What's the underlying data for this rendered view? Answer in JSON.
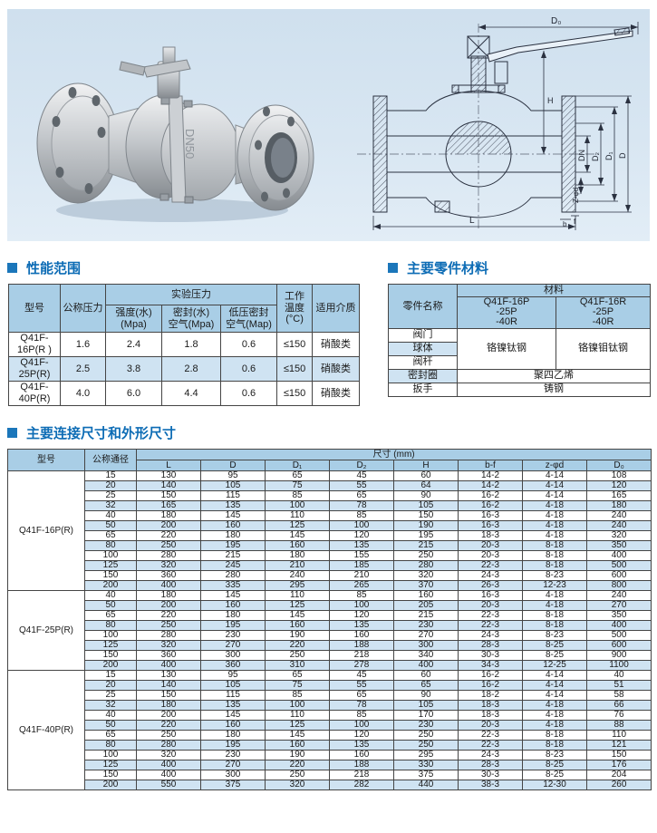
{
  "page": {
    "accent_blue": "#0d6cb5",
    "panel_bg": "#d8e6f2",
    "table_header_bg": "#a9cee6",
    "table_alt_row_bg": "#cfe3f2"
  },
  "hero": {
    "photo": {
      "cast_marking": "DN50"
    },
    "drawing": {
      "labels": {
        "d0": "D₀",
        "h": "H",
        "dn": "DN",
        "d2": "D₂",
        "d1": "D₁",
        "d": "D",
        "z_phi_d": "Z-φd",
        "b": "b",
        "f": "f",
        "l": "L"
      }
    }
  },
  "sections": {
    "performance": {
      "title": "性能范围"
    },
    "materials": {
      "title": "主要零件材料"
    },
    "dimensions": {
      "title": "主要连接尺寸和外形尺寸"
    }
  },
  "perf_table": {
    "head": [
      [
        {
          "t": "型号",
          "rs": 2
        },
        {
          "t": "公称压力",
          "rs": 2
        },
        {
          "t": "实验压力",
          "cs": 3
        },
        {
          "t": "工作\n温度\n(°C)",
          "rs": 2
        },
        {
          "t": "适用介质",
          "rs": 2
        }
      ],
      [
        {
          "t": "强度(水)\n(Mpa)"
        },
        {
          "t": "密封(水)\n空气(Mpa)"
        },
        {
          "t": "低压密封\n空气(Map)"
        }
      ]
    ],
    "body": [
      [
        {
          "t": "Q41F-\n16P(R )"
        },
        {
          "t": "1.6"
        },
        {
          "t": "2.4"
        },
        {
          "t": "1.8"
        },
        {
          "t": "0.6"
        },
        {
          "t": "≤150"
        },
        {
          "t": "硝酸类"
        }
      ],
      [
        {
          "t": "Q41F-\n25P(R)"
        },
        {
          "t": "2.5"
        },
        {
          "t": "3.8"
        },
        {
          "t": "2.8"
        },
        {
          "t": "0.6"
        },
        {
          "t": "≤150"
        },
        {
          "t": "硝酸类"
        }
      ],
      [
        {
          "t": "Q41F-\n40P(R)"
        },
        {
          "t": "4.0"
        },
        {
          "t": "6.0"
        },
        {
          "t": "4.4"
        },
        {
          "t": "0.6"
        },
        {
          "t": "≤150"
        },
        {
          "t": "硝酸类"
        }
      ]
    ]
  },
  "mat_table": {
    "head": [
      [
        {
          "t": "零件名称",
          "rs": 2
        },
        {
          "t": "材料",
          "cs": 2
        }
      ],
      [
        {
          "t": "Q41F-16P\n-25P\n-40R"
        },
        {
          "t": "Q41F-16R\n-25P\n-40R"
        }
      ]
    ],
    "body": [
      [
        {
          "t": "阀门"
        },
        {
          "t": "铬镍钛钢",
          "rs": 3
        },
        {
          "t": "铬镍钼钛钢",
          "rs": 3
        }
      ],
      [
        {
          "t": "球体"
        }
      ],
      [
        {
          "t": "阀杆"
        }
      ],
      [
        {
          "t": "密封圈"
        },
        {
          "t": "聚四乙烯",
          "cs": 2
        }
      ],
      [
        {
          "t": "扳手"
        },
        {
          "t": "铸钢",
          "cs": 2
        }
      ]
    ]
  },
  "dim_table": {
    "head": [
      [
        {
          "t": "型号",
          "rs": 2
        },
        {
          "t": "公称通径",
          "rs": 2
        },
        {
          "t": "尺寸 (mm)",
          "cs": 8
        }
      ],
      [
        {
          "t": "L"
        },
        {
          "t": "D"
        },
        {
          "t": "D₁"
        },
        {
          "t": "D₂"
        },
        {
          "t": "H"
        },
        {
          "t": "b-f"
        },
        {
          "t": "z-φd"
        },
        {
          "t": "D₀"
        }
      ]
    ],
    "body": [
      [
        {
          "t": "Q41F-16P(R)",
          "rs": 12
        },
        {
          "t": "15"
        },
        {
          "t": "130"
        },
        {
          "t": "95"
        },
        {
          "t": "65"
        },
        {
          "t": "45"
        },
        {
          "t": "60"
        },
        {
          "t": "14-2"
        },
        {
          "t": "4-14"
        },
        {
          "t": "108"
        }
      ],
      [
        {
          "t": "20"
        },
        {
          "t": "140"
        },
        {
          "t": "105"
        },
        {
          "t": "75"
        },
        {
          "t": "55"
        },
        {
          "t": "64"
        },
        {
          "t": "14-2"
        },
        {
          "t": "4-14"
        },
        {
          "t": "120"
        }
      ],
      [
        {
          "t": "25"
        },
        {
          "t": "150"
        },
        {
          "t": "115"
        },
        {
          "t": "85"
        },
        {
          "t": "65"
        },
        {
          "t": "90"
        },
        {
          "t": "16-2"
        },
        {
          "t": "4-14"
        },
        {
          "t": "165"
        }
      ],
      [
        {
          "t": "32"
        },
        {
          "t": "165"
        },
        {
          "t": "135"
        },
        {
          "t": "100"
        },
        {
          "t": "78"
        },
        {
          "t": "105"
        },
        {
          "t": "16-2"
        },
        {
          "t": "4-18"
        },
        {
          "t": "180"
        }
      ],
      [
        {
          "t": "40"
        },
        {
          "t": "180"
        },
        {
          "t": "145"
        },
        {
          "t": "110"
        },
        {
          "t": "85"
        },
        {
          "t": "150"
        },
        {
          "t": "16-3"
        },
        {
          "t": "4-18"
        },
        {
          "t": "240"
        }
      ],
      [
        {
          "t": "50"
        },
        {
          "t": "200"
        },
        {
          "t": "160"
        },
        {
          "t": "125"
        },
        {
          "t": "100"
        },
        {
          "t": "190"
        },
        {
          "t": "16-3"
        },
        {
          "t": "4-18"
        },
        {
          "t": "240"
        }
      ],
      [
        {
          "t": "65"
        },
        {
          "t": "220"
        },
        {
          "t": "180"
        },
        {
          "t": "145"
        },
        {
          "t": "120"
        },
        {
          "t": "195"
        },
        {
          "t": "18-3"
        },
        {
          "t": "4-18"
        },
        {
          "t": "320"
        }
      ],
      [
        {
          "t": "80"
        },
        {
          "t": "250"
        },
        {
          "t": "195"
        },
        {
          "t": "160"
        },
        {
          "t": "135"
        },
        {
          "t": "215"
        },
        {
          "t": "20-3"
        },
        {
          "t": "8-18"
        },
        {
          "t": "350"
        }
      ],
      [
        {
          "t": "100"
        },
        {
          "t": "280"
        },
        {
          "t": "215"
        },
        {
          "t": "180"
        },
        {
          "t": "155"
        },
        {
          "t": "250"
        },
        {
          "t": "20-3"
        },
        {
          "t": "8-18"
        },
        {
          "t": "400"
        }
      ],
      [
        {
          "t": "125"
        },
        {
          "t": "320"
        },
        {
          "t": "245"
        },
        {
          "t": "210"
        },
        {
          "t": "185"
        },
        {
          "t": "280"
        },
        {
          "t": "22-3"
        },
        {
          "t": "8-18"
        },
        {
          "t": "500"
        }
      ],
      [
        {
          "t": "150"
        },
        {
          "t": "360"
        },
        {
          "t": "280"
        },
        {
          "t": "240"
        },
        {
          "t": "210"
        },
        {
          "t": "320"
        },
        {
          "t": "24-3"
        },
        {
          "t": "8-23"
        },
        {
          "t": "600"
        }
      ],
      [
        {
          "t": "200"
        },
        {
          "t": "400"
        },
        {
          "t": "335"
        },
        {
          "t": "295"
        },
        {
          "t": "265"
        },
        {
          "t": "370"
        },
        {
          "t": "26-3"
        },
        {
          "t": "12-23"
        },
        {
          "t": "800"
        }
      ],
      [
        {
          "t": "Q41F-25P(R)",
          "rs": 8
        },
        {
          "t": "40"
        },
        {
          "t": "180"
        },
        {
          "t": "145"
        },
        {
          "t": "110"
        },
        {
          "t": "85"
        },
        {
          "t": "160"
        },
        {
          "t": "16-3"
        },
        {
          "t": "4-18"
        },
        {
          "t": "240"
        }
      ],
      [
        {
          "t": "50"
        },
        {
          "t": "200"
        },
        {
          "t": "160"
        },
        {
          "t": "125"
        },
        {
          "t": "100"
        },
        {
          "t": "205"
        },
        {
          "t": "20-3"
        },
        {
          "t": "4-18"
        },
        {
          "t": "270"
        }
      ],
      [
        {
          "t": "65"
        },
        {
          "t": "220"
        },
        {
          "t": "180"
        },
        {
          "t": "145"
        },
        {
          "t": "120"
        },
        {
          "t": "215"
        },
        {
          "t": "22-3"
        },
        {
          "t": "8-18"
        },
        {
          "t": "350"
        }
      ],
      [
        {
          "t": "80"
        },
        {
          "t": "250"
        },
        {
          "t": "195"
        },
        {
          "t": "160"
        },
        {
          "t": "135"
        },
        {
          "t": "230"
        },
        {
          "t": "22-3"
        },
        {
          "t": "8-18"
        },
        {
          "t": "400"
        }
      ],
      [
        {
          "t": "100"
        },
        {
          "t": "280"
        },
        {
          "t": "230"
        },
        {
          "t": "190"
        },
        {
          "t": "160"
        },
        {
          "t": "270"
        },
        {
          "t": "24-3"
        },
        {
          "t": "8-23"
        },
        {
          "t": "500"
        }
      ],
      [
        {
          "t": "125"
        },
        {
          "t": "320"
        },
        {
          "t": "270"
        },
        {
          "t": "220"
        },
        {
          "t": "188"
        },
        {
          "t": "300"
        },
        {
          "t": "28-3"
        },
        {
          "t": "8-25"
        },
        {
          "t": "600"
        }
      ],
      [
        {
          "t": "150"
        },
        {
          "t": "360"
        },
        {
          "t": "300"
        },
        {
          "t": "250"
        },
        {
          "t": "218"
        },
        {
          "t": "340"
        },
        {
          "t": "30-3"
        },
        {
          "t": "8-25"
        },
        {
          "t": "900"
        }
      ],
      [
        {
          "t": "200"
        },
        {
          "t": "400"
        },
        {
          "t": "360"
        },
        {
          "t": "310"
        },
        {
          "t": "278"
        },
        {
          "t": "400"
        },
        {
          "t": "34-3"
        },
        {
          "t": "12-25"
        },
        {
          "t": "1100"
        }
      ],
      [
        {
          "t": "Q41F-40P(R)",
          "rs": 12
        },
        {
          "t": "15"
        },
        {
          "t": "130"
        },
        {
          "t": "95"
        },
        {
          "t": "65"
        },
        {
          "t": "45"
        },
        {
          "t": "60"
        },
        {
          "t": "16-2"
        },
        {
          "t": "4-14"
        },
        {
          "t": "40"
        }
      ],
      [
        {
          "t": "20"
        },
        {
          "t": "140"
        },
        {
          "t": "105"
        },
        {
          "t": "75"
        },
        {
          "t": "55"
        },
        {
          "t": "65"
        },
        {
          "t": "16-2"
        },
        {
          "t": "4-14"
        },
        {
          "t": "51"
        }
      ],
      [
        {
          "t": "25"
        },
        {
          "t": "150"
        },
        {
          "t": "115"
        },
        {
          "t": "85"
        },
        {
          "t": "65"
        },
        {
          "t": "90"
        },
        {
          "t": "18-2"
        },
        {
          "t": "4-14"
        },
        {
          "t": "58"
        }
      ],
      [
        {
          "t": "32"
        },
        {
          "t": "180"
        },
        {
          "t": "135"
        },
        {
          "t": "100"
        },
        {
          "t": "78"
        },
        {
          "t": "105"
        },
        {
          "t": "18-3"
        },
        {
          "t": "4-18"
        },
        {
          "t": "66"
        }
      ],
      [
        {
          "t": "40"
        },
        {
          "t": "200"
        },
        {
          "t": "145"
        },
        {
          "t": "110"
        },
        {
          "t": "85"
        },
        {
          "t": "170"
        },
        {
          "t": "18-3"
        },
        {
          "t": "4-18"
        },
        {
          "t": "76"
        }
      ],
      [
        {
          "t": "50"
        },
        {
          "t": "220"
        },
        {
          "t": "160"
        },
        {
          "t": "125"
        },
        {
          "t": "100"
        },
        {
          "t": "230"
        },
        {
          "t": "20-3"
        },
        {
          "t": "4-18"
        },
        {
          "t": "88"
        }
      ],
      [
        {
          "t": "65"
        },
        {
          "t": "250"
        },
        {
          "t": "180"
        },
        {
          "t": "145"
        },
        {
          "t": "120"
        },
        {
          "t": "250"
        },
        {
          "t": "22-3"
        },
        {
          "t": "8-18"
        },
        {
          "t": "110"
        }
      ],
      [
        {
          "t": "80"
        },
        {
          "t": "280"
        },
        {
          "t": "195"
        },
        {
          "t": "160"
        },
        {
          "t": "135"
        },
        {
          "t": "250"
        },
        {
          "t": "22-3"
        },
        {
          "t": "8-18"
        },
        {
          "t": "121"
        }
      ],
      [
        {
          "t": "100"
        },
        {
          "t": "320"
        },
        {
          "t": "230"
        },
        {
          "t": "190"
        },
        {
          "t": "160"
        },
        {
          "t": "295"
        },
        {
          "t": "24-3"
        },
        {
          "t": "8-23"
        },
        {
          "t": "150"
        }
      ],
      [
        {
          "t": "125"
        },
        {
          "t": "400"
        },
        {
          "t": "270"
        },
        {
          "t": "220"
        },
        {
          "t": "188"
        },
        {
          "t": "330"
        },
        {
          "t": "28-3"
        },
        {
          "t": "8-25"
        },
        {
          "t": "176"
        }
      ],
      [
        {
          "t": "150"
        },
        {
          "t": "400"
        },
        {
          "t": "300"
        },
        {
          "t": "250"
        },
        {
          "t": "218"
        },
        {
          "t": "375"
        },
        {
          "t": "30-3"
        },
        {
          "t": "8-25"
        },
        {
          "t": "204"
        }
      ],
      [
        {
          "t": "200"
        },
        {
          "t": "550"
        },
        {
          "t": "375"
        },
        {
          "t": "320"
        },
        {
          "t": "282"
        },
        {
          "t": "440"
        },
        {
          "t": "38-3"
        },
        {
          "t": "12-30"
        },
        {
          "t": "260"
        }
      ]
    ]
  }
}
